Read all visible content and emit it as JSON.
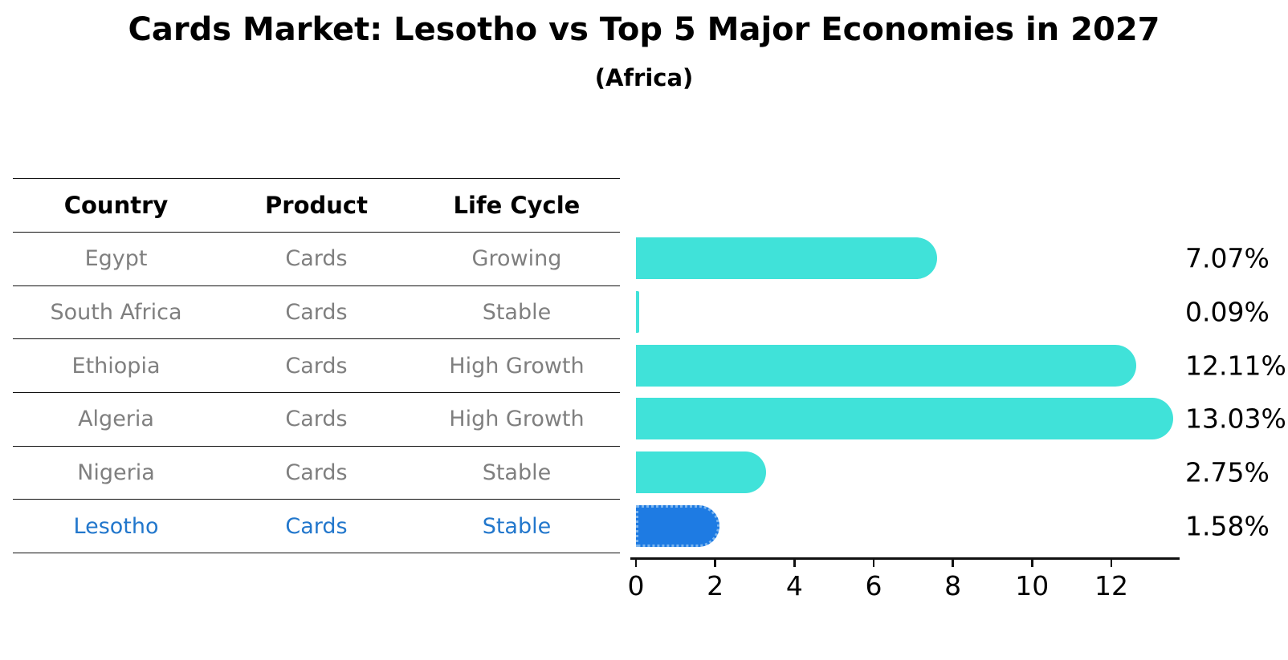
{
  "title": "Cards Market: Lesotho vs Top 5 Major Economies in 2027",
  "subtitle": "(Africa)",
  "table": {
    "headers": [
      "Country",
      "Product",
      "Life Cycle"
    ],
    "rows": [
      {
        "country": "Egypt",
        "product": "Cards",
        "life_cycle": "Growing"
      },
      {
        "country": "South Africa",
        "product": "Cards",
        "life_cycle": "Stable"
      },
      {
        "country": "Ethiopia",
        "product": "Cards",
        "life_cycle": "High Growth"
      },
      {
        "country": "Algeria",
        "product": "Cards",
        "life_cycle": "High Growth"
      },
      {
        "country": "Nigeria",
        "product": "Cards",
        "life_cycle": "Stable"
      },
      {
        "country": "Lesotho",
        "product": "Cards",
        "life_cycle": "Stable"
      }
    ]
  },
  "chart_data": {
    "type": "bar",
    "orientation": "horizontal",
    "title": "Cards Market: Lesotho vs Top 5 Major Economies in 2027",
    "subtitle": "(Africa)",
    "categories": [
      "Egypt",
      "South Africa",
      "Ethiopia",
      "Algeria",
      "Nigeria",
      "Lesotho"
    ],
    "values": [
      7.07,
      0.09,
      12.11,
      13.03,
      2.75,
      1.58
    ],
    "value_labels": [
      "7.07%",
      "0.09%",
      "12.11%",
      "13.03%",
      "2.75%",
      "1.58%"
    ],
    "x_ticks": [
      "0",
      "2",
      "4",
      "6",
      "8",
      "10",
      "12"
    ],
    "xlim": [
      0,
      13.7
    ],
    "grid": false,
    "legend": "none",
    "highlight_index": 5,
    "colors": {
      "bar": "#40E2D9",
      "highlight_bar": "#1E7BE3",
      "highlight_text": "#2277CC",
      "row_text": "#7F7F7F",
      "axis": "#111111"
    }
  }
}
